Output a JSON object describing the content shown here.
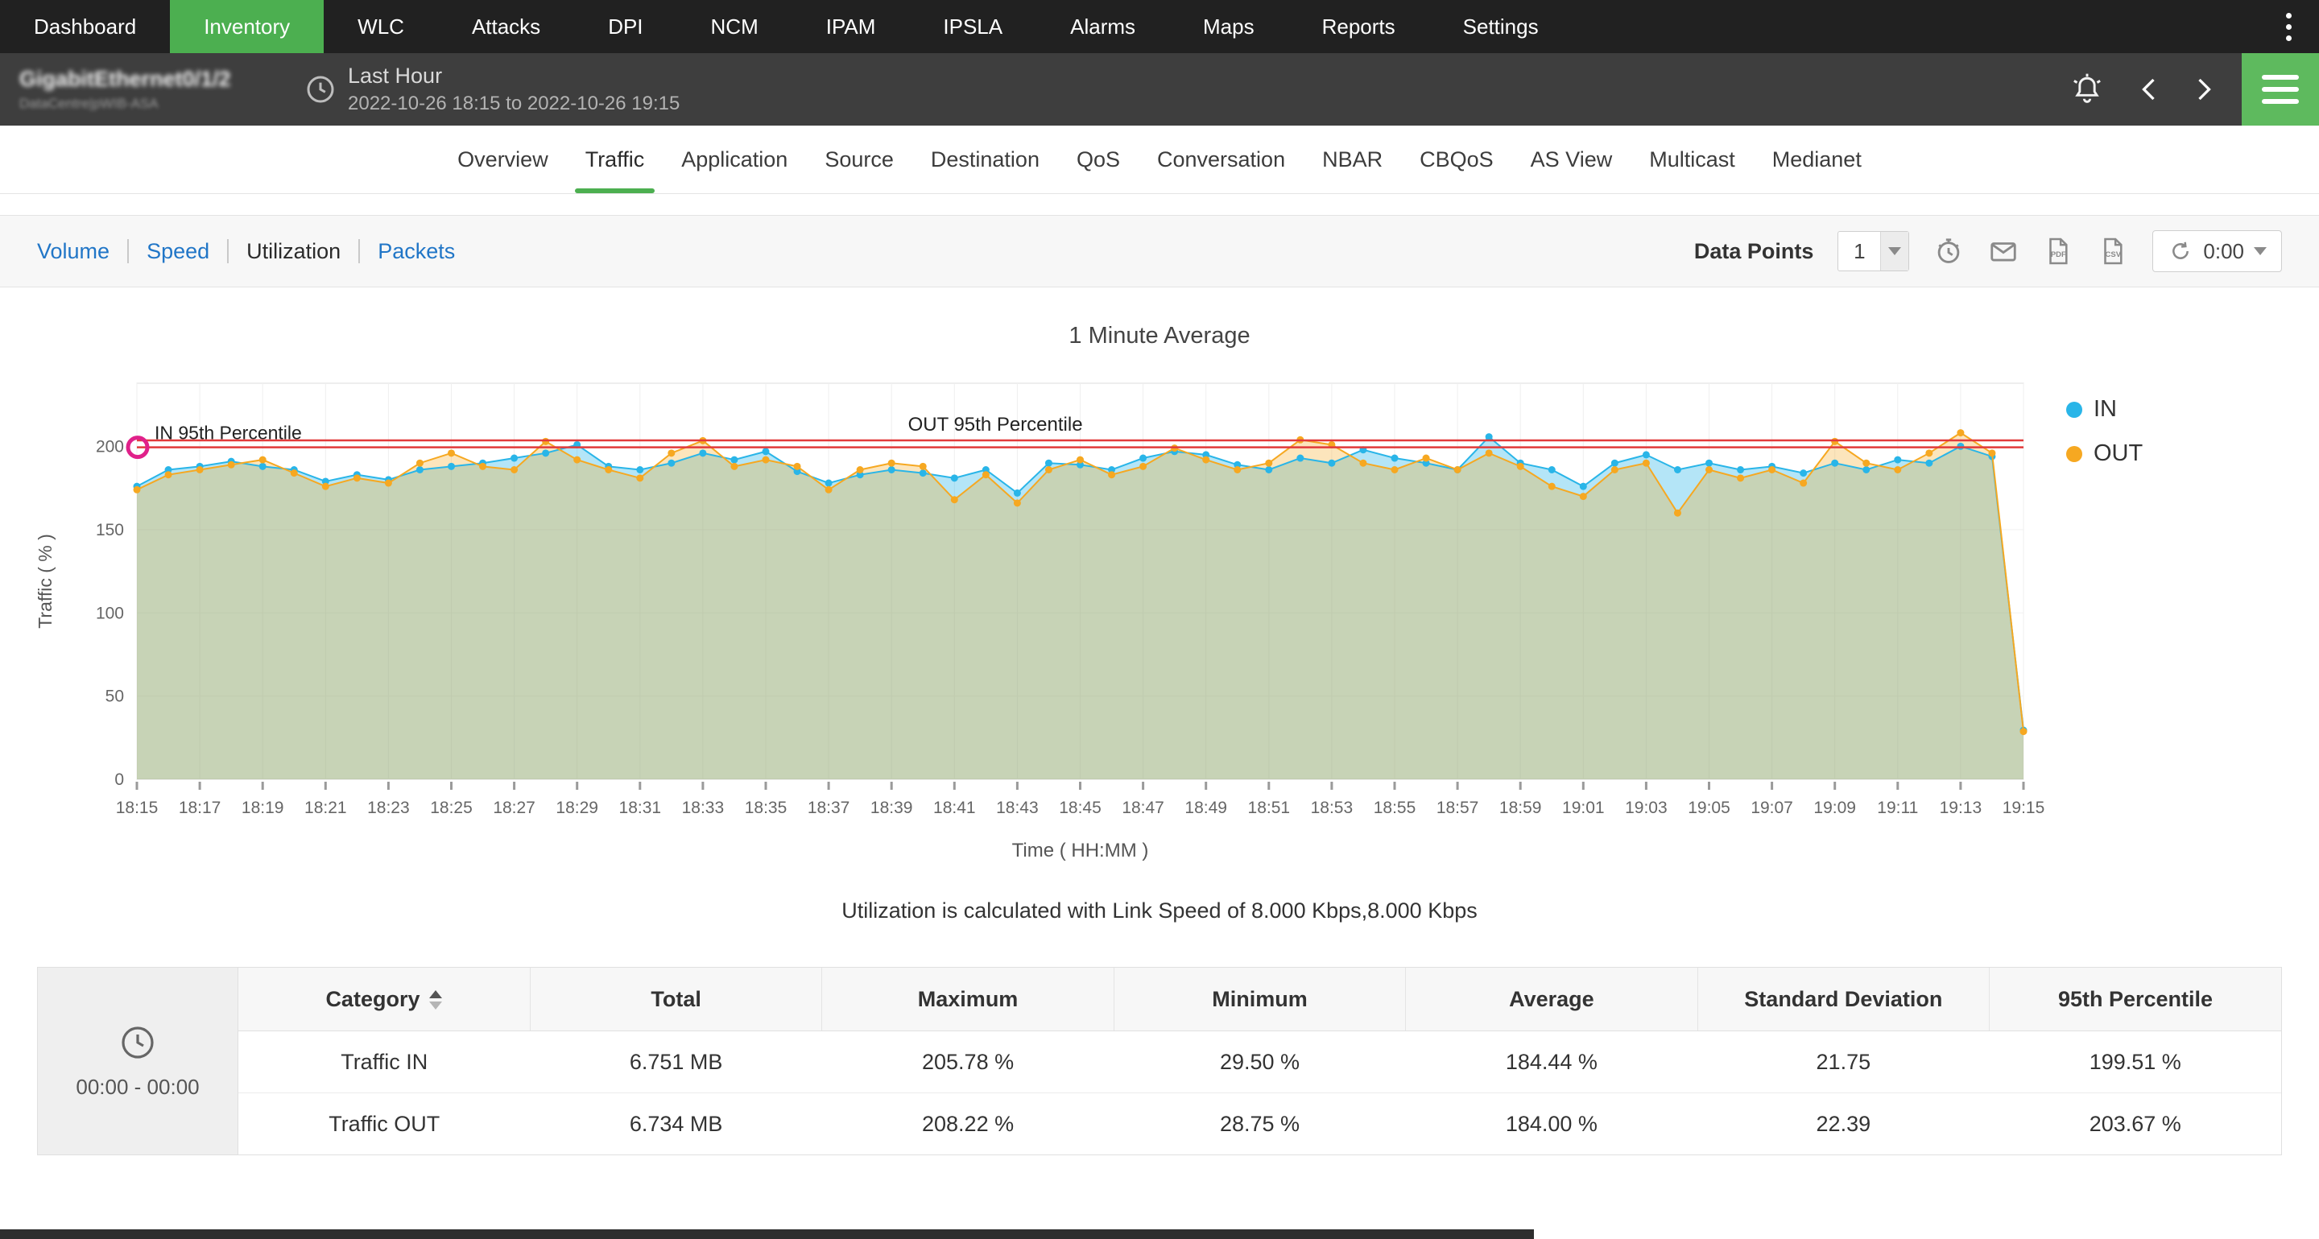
{
  "topnav": {
    "items": [
      "Dashboard",
      "Inventory",
      "WLC",
      "Attacks",
      "DPI",
      "NCM",
      "IPAM",
      "IPSLA",
      "Alarms",
      "Maps",
      "Reports",
      "Settings"
    ],
    "active": "Inventory"
  },
  "header": {
    "device_name": "GigabitEthernet0/1/2",
    "device_sub": "DataCentre|pWIB-ASA",
    "period_label": "Last Hour",
    "period_range": "2022-10-26 18:15 to 2022-10-26 19:15"
  },
  "tabs": {
    "items": [
      "Overview",
      "Traffic",
      "Application",
      "Source",
      "Destination",
      "QoS",
      "Conversation",
      "NBAR",
      "CBQoS",
      "AS View",
      "Multicast",
      "Medianet"
    ],
    "active": "Traffic"
  },
  "toolbar": {
    "links": [
      "Volume",
      "Speed",
      "Utilization",
      "Packets"
    ],
    "active_link": "Utilization",
    "data_points_label": "Data Points",
    "data_points_value": "1",
    "refresh_timer": "0:00"
  },
  "chart_data": {
    "type": "area",
    "title": "1 Minute Average",
    "xlabel": "Time ( HH:MM )",
    "ylabel": "Traffic ( % )",
    "y_ticks": [
      0,
      50,
      100,
      150,
      200
    ],
    "y_plot_max": 238,
    "grid": true,
    "legend_position": "right",
    "x_start": "18:15",
    "x_end": "19:15",
    "x_interval_minutes": 1,
    "x_tick_labels": [
      "18:15",
      "18:17",
      "18:19",
      "18:21",
      "18:23",
      "18:25",
      "18:27",
      "18:29",
      "18:31",
      "18:33",
      "18:35",
      "18:37",
      "18:39",
      "18:41",
      "18:43",
      "18:45",
      "18:47",
      "18:49",
      "18:51",
      "18:53",
      "18:55",
      "18:57",
      "18:59",
      "19:01",
      "19:03",
      "19:05",
      "19:07",
      "19:09",
      "19:11",
      "19:13",
      "19:15"
    ],
    "series": [
      {
        "name": "IN",
        "color": "#29b5e8",
        "fill": "rgba(41,181,232,0.35)",
        "values": [
          176,
          186,
          188,
          191,
          188,
          186,
          179,
          183,
          180,
          186,
          188,
          190,
          193,
          196,
          201,
          188,
          186,
          190,
          196,
          192,
          197,
          185,
          178,
          183,
          186,
          184,
          181,
          186,
          172,
          190,
          189,
          186,
          193,
          197,
          195,
          189,
          186,
          193,
          190,
          198,
          193,
          190,
          186,
          205.8,
          190,
          186,
          176,
          190,
          195,
          186,
          190,
          186,
          188,
          184,
          190,
          186,
          192,
          190,
          200.1,
          194,
          29.5
        ]
      },
      {
        "name": "OUT",
        "color": "#f6a821",
        "fill": "rgba(246,168,33,0.30)",
        "values": [
          174,
          183,
          186,
          189,
          192,
          184,
          176,
          181,
          178,
          190,
          196,
          188,
          186,
          203,
          192,
          186,
          181,
          196,
          203.5,
          188,
          192,
          188,
          174,
          186,
          190,
          188,
          168,
          183,
          166,
          186,
          192,
          183,
          188,
          199,
          192,
          186,
          190,
          204,
          201,
          190,
          186,
          193,
          186,
          196,
          188,
          176,
          170,
          186,
          190,
          160,
          186,
          181,
          186,
          178,
          203,
          190,
          186,
          196,
          208.2,
          196,
          28.75
        ]
      }
    ],
    "percentiles": {
      "in_95": 199.51,
      "in_label": "IN 95th Percentile",
      "out_95": 203.67,
      "out_label": "OUT 95th Percentile",
      "line_color": "#e23b3b",
      "marker_color": "#e0218a"
    }
  },
  "caption": "Utilization is calculated with Link Speed of 8.000 Kbps,8.000 Kbps",
  "table": {
    "time_range": "00:00 - 00:00",
    "columns": [
      "Category",
      "Total",
      "Maximum",
      "Minimum",
      "Average",
      "Standard Deviation",
      "95th Percentile"
    ],
    "rows": [
      [
        "Traffic IN",
        "6.751 MB",
        "205.78 %",
        "29.50 %",
        "184.44 %",
        "21.75",
        "199.51 %"
      ],
      [
        "Traffic OUT",
        "6.734 MB",
        "208.22 %",
        "28.75 %",
        "184.00 %",
        "22.39",
        "203.67 %"
      ]
    ]
  }
}
